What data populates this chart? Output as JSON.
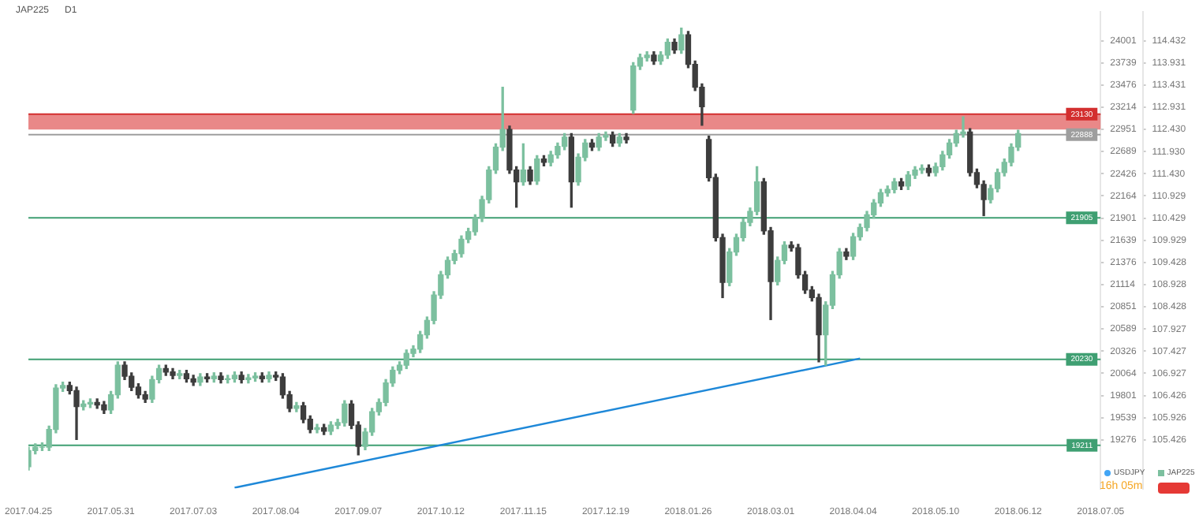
{
  "chart_data": {
    "type": "candlestick",
    "title": "JAP225",
    "annotations": [
      "D1",
      "USDJPY",
      "16h 05m"
    ],
    "categories": [
      "2017.04.25",
      null,
      null,
      null,
      null,
      null,
      null,
      null,
      null,
      null,
      null,
      null,
      "2017.05.31",
      null,
      null,
      null,
      null,
      null,
      null,
      null,
      null,
      null,
      null,
      null,
      "2017.07.03",
      null,
      null,
      null,
      null,
      null,
      null,
      null,
      null,
      null,
      null,
      null,
      "2017.08.04",
      null,
      null,
      null,
      null,
      null,
      null,
      null,
      null,
      null,
      null,
      null,
      "2017.09.07",
      null,
      null,
      null,
      null,
      null,
      null,
      null,
      null,
      null,
      null,
      null,
      "2017.10.12",
      null,
      null,
      null,
      null,
      null,
      null,
      null,
      null,
      null,
      null,
      null,
      "2017.11.15",
      null,
      null,
      null,
      null,
      null,
      null,
      null,
      null,
      null,
      null,
      null,
      "2017.12.19",
      null,
      null,
      null,
      null,
      null,
      null,
      null,
      null,
      null,
      null,
      null,
      "2018.01.26",
      null,
      null,
      null,
      null,
      null,
      null,
      null,
      null,
      null,
      null,
      null,
      "2018.03.01",
      null,
      null,
      null,
      null,
      null,
      null,
      null,
      null,
      null,
      null,
      null,
      "2018.04.04",
      null,
      null,
      null,
      null,
      null,
      null,
      null,
      null,
      null,
      null,
      null,
      "2018.05.10",
      null,
      null,
      null,
      null,
      null,
      null,
      null,
      null,
      null,
      null,
      null,
      "2018.06.12",
      null,
      null,
      null,
      null,
      null,
      null,
      null,
      null,
      null,
      null,
      null,
      "2018.07.05"
    ],
    "series": [
      {
        "name": "JAP225",
        "type": "candlestick",
        "axis": "y2",
        "color": "#7cc09f",
        "ohlc": [
          [
            18960,
            19190,
            18920,
            19150
          ],
          [
            19150,
            19230,
            19110,
            19190
          ],
          [
            19190,
            19240,
            19150,
            19190
          ],
          [
            19190,
            19440,
            19150,
            19400
          ],
          [
            19400,
            19930,
            19360,
            19890
          ],
          [
            19890,
            19960,
            19850,
            19920
          ],
          [
            19920,
            19960,
            19820,
            19860
          ],
          [
            19860,
            19900,
            19280,
            19670
          ],
          [
            19670,
            19740,
            19630,
            19700
          ],
          [
            19700,
            19760,
            19660,
            19720
          ],
          [
            19720,
            19760,
            19650,
            19690
          ],
          [
            19690,
            19730,
            19590,
            19630
          ],
          [
            19630,
            19850,
            19590,
            19810
          ],
          [
            19810,
            20200,
            19770,
            20160
          ],
          [
            20160,
            20200,
            19990,
            20030
          ],
          [
            20030,
            20070,
            19860,
            19900
          ],
          [
            19900,
            19940,
            19770,
            19810
          ],
          [
            19810,
            19850,
            19720,
            19760
          ],
          [
            19760,
            20030,
            19720,
            19990
          ],
          [
            19990,
            20160,
            19950,
            20120
          ],
          [
            20120,
            20160,
            20040,
            20080
          ],
          [
            20080,
            20120,
            20000,
            20040
          ],
          [
            20040,
            20100,
            20000,
            20060
          ],
          [
            20060,
            20100,
            19960,
            20000
          ],
          [
            20000,
            20040,
            19920,
            19960
          ],
          [
            19960,
            20060,
            19920,
            20020
          ],
          [
            20020,
            20060,
            19960,
            20000
          ],
          [
            20000,
            20070,
            19960,
            20030
          ],
          [
            20030,
            20070,
            19950,
            19990
          ],
          [
            19990,
            20040,
            19950,
            20000
          ],
          [
            20000,
            20080,
            19960,
            20040
          ],
          [
            20040,
            20080,
            19950,
            19990
          ],
          [
            19990,
            20050,
            19950,
            20010
          ],
          [
            20010,
            20070,
            19970,
            20030
          ],
          [
            20030,
            20070,
            19960,
            20000
          ],
          [
            20000,
            20080,
            19960,
            20040
          ],
          [
            20040,
            20080,
            19980,
            20020
          ],
          [
            20020,
            20060,
            19770,
            19810
          ],
          [
            19810,
            19850,
            19610,
            19650
          ],
          [
            19650,
            19720,
            19610,
            19680
          ],
          [
            19680,
            19720,
            19480,
            19520
          ],
          [
            19520,
            19560,
            19360,
            19400
          ],
          [
            19400,
            19460,
            19360,
            19420
          ],
          [
            19420,
            19460,
            19340,
            19380
          ],
          [
            19380,
            19490,
            19340,
            19450
          ],
          [
            19450,
            19520,
            19410,
            19480
          ],
          [
            19480,
            19740,
            19440,
            19700
          ],
          [
            19700,
            19740,
            19410,
            19450
          ],
          [
            19450,
            19490,
            19100,
            19200
          ],
          [
            19200,
            19410,
            19160,
            19370
          ],
          [
            19370,
            19650,
            19330,
            19610
          ],
          [
            19610,
            19760,
            19570,
            19720
          ],
          [
            19720,
            19990,
            19680,
            19950
          ],
          [
            19950,
            20140,
            19910,
            20100
          ],
          [
            20100,
            20200,
            20060,
            20160
          ],
          [
            20160,
            20340,
            20120,
            20300
          ],
          [
            20300,
            20390,
            20260,
            20350
          ],
          [
            20350,
            20560,
            20310,
            20520
          ],
          [
            20520,
            20730,
            20480,
            20690
          ],
          [
            20690,
            21030,
            20650,
            20990
          ],
          [
            20990,
            21270,
            20950,
            21230
          ],
          [
            21230,
            21440,
            21190,
            21400
          ],
          [
            21400,
            21520,
            21360,
            21480
          ],
          [
            21480,
            21690,
            21440,
            21650
          ],
          [
            21650,
            21780,
            21610,
            21740
          ],
          [
            21740,
            21940,
            21700,
            21900
          ],
          [
            21900,
            22160,
            21860,
            22120
          ],
          [
            22120,
            22510,
            22080,
            22470
          ],
          [
            22470,
            22780,
            22430,
            22740
          ],
          [
            22740,
            23450,
            22700,
            22950
          ],
          [
            22950,
            22990,
            22430,
            22470
          ],
          [
            22470,
            22510,
            22030,
            22330
          ],
          [
            22330,
            22780,
            22290,
            22470
          ],
          [
            22470,
            22510,
            22300,
            22340
          ],
          [
            22340,
            22640,
            22300,
            22600
          ],
          [
            22600,
            22640,
            22520,
            22560
          ],
          [
            22560,
            22690,
            22520,
            22650
          ],
          [
            22650,
            22790,
            22610,
            22750
          ],
          [
            22750,
            22900,
            22710,
            22860
          ],
          [
            22860,
            22900,
            22030,
            22330
          ],
          [
            22330,
            22660,
            22290,
            22620
          ],
          [
            22620,
            22830,
            22580,
            22790
          ],
          [
            22790,
            22830,
            22700,
            22740
          ],
          [
            22740,
            22900,
            22700,
            22860
          ],
          [
            22860,
            22920,
            22820,
            22880
          ],
          [
            22880,
            22920,
            22750,
            22790
          ],
          [
            22790,
            22900,
            22750,
            22860
          ],
          [
            22860,
            22900,
            22790,
            22830
          ],
          [
            23180,
            23740,
            23140,
            23700
          ],
          [
            23700,
            23840,
            23660,
            23800
          ],
          [
            23800,
            23870,
            23760,
            23830
          ],
          [
            23830,
            23870,
            23720,
            23760
          ],
          [
            23760,
            23870,
            23720,
            23830
          ],
          [
            23830,
            24020,
            23790,
            23980
          ],
          [
            23980,
            24020,
            23850,
            23890
          ],
          [
            23890,
            24150,
            23850,
            24070
          ],
          [
            24070,
            24110,
            23680,
            23720
          ],
          [
            23720,
            23760,
            23410,
            23450
          ],
          [
            23450,
            23490,
            23000,
            23220
          ],
          [
            22830,
            22870,
            22340,
            22380
          ],
          [
            22380,
            22420,
            21630,
            21670
          ],
          [
            21670,
            21710,
            20960,
            21140
          ],
          [
            21140,
            21540,
            21100,
            21500
          ],
          [
            21500,
            21710,
            21460,
            21670
          ],
          [
            21670,
            21890,
            21630,
            21850
          ],
          [
            21850,
            22020,
            21810,
            21980
          ],
          [
            21980,
            22510,
            21940,
            22330
          ],
          [
            22330,
            22370,
            21710,
            21750
          ],
          [
            21750,
            21790,
            20700,
            21150
          ],
          [
            21150,
            21440,
            21110,
            21400
          ],
          [
            21400,
            21620,
            21360,
            21580
          ],
          [
            21580,
            21620,
            21510,
            21550
          ],
          [
            21550,
            21590,
            21190,
            21230
          ],
          [
            21230,
            21270,
            21010,
            21050
          ],
          [
            21050,
            21090,
            20920,
            20960
          ],
          [
            20960,
            21000,
            20200,
            20520
          ],
          [
            20520,
            20910,
            20160,
            20870
          ],
          [
            20870,
            21270,
            20830,
            21230
          ],
          [
            21230,
            21540,
            21190,
            21500
          ],
          [
            21500,
            21540,
            21410,
            21450
          ],
          [
            21450,
            21720,
            21410,
            21680
          ],
          [
            21680,
            21830,
            21640,
            21790
          ],
          [
            21790,
            21980,
            21750,
            21940
          ],
          [
            21940,
            22120,
            21900,
            22080
          ],
          [
            22080,
            22240,
            22040,
            22200
          ],
          [
            22200,
            22280,
            22160,
            22240
          ],
          [
            22240,
            22370,
            22200,
            22330
          ],
          [
            22330,
            22370,
            22240,
            22280
          ],
          [
            22280,
            22450,
            22240,
            22410
          ],
          [
            22410,
            22510,
            22370,
            22470
          ],
          [
            22470,
            22530,
            22430,
            22490
          ],
          [
            22490,
            22530,
            22400,
            22440
          ],
          [
            22440,
            22550,
            22400,
            22510
          ],
          [
            22510,
            22690,
            22470,
            22650
          ],
          [
            22650,
            22830,
            22610,
            22790
          ],
          [
            22790,
            22940,
            22750,
            22900
          ],
          [
            22900,
            23100,
            22860,
            22920
          ],
          [
            22920,
            22960,
            22400,
            22440
          ],
          [
            22440,
            22480,
            22260,
            22300
          ],
          [
            22300,
            22340,
            21930,
            22120
          ],
          [
            22120,
            22290,
            22080,
            22250
          ],
          [
            22250,
            22480,
            22210,
            22440
          ],
          [
            22440,
            22600,
            22400,
            22560
          ],
          [
            22560,
            22780,
            22520,
            22740
          ],
          [
            22740,
            22940,
            22700,
            22900
          ],
          null,
          null,
          null,
          null,
          null,
          null,
          null,
          null,
          null,
          null,
          null,
          null
        ],
        "colors": [
          "#7cc09f",
          "#7cc09f",
          "#7cc09f",
          "#7cc09f",
          "#7cc09f",
          "#7cc09f",
          "#3d3d3d",
          "#3d3d3d",
          "#7cc09f",
          "#7cc09f",
          "#3d3d3d",
          "#3d3d3d",
          "#7cc09f",
          "#7cc09f",
          "#3d3d3d",
          "#3d3d3d",
          "#3d3d3d",
          "#3d3d3d",
          "#7cc09f",
          "#7cc09f",
          "#3d3d3d",
          "#3d3d3d",
          "#7cc09f",
          "#3d3d3d",
          "#3d3d3d",
          "#7cc09f",
          "#3d3d3d",
          "#7cc09f",
          "#3d3d3d",
          "#7cc09f",
          "#7cc09f",
          "#3d3d3d",
          "#7cc09f",
          "#7cc09f",
          "#3d3d3d",
          "#7cc09f",
          "#3d3d3d",
          "#3d3d3d",
          "#3d3d3d",
          "#7cc09f",
          "#3d3d3d",
          "#3d3d3d",
          "#7cc09f",
          "#3d3d3d",
          "#7cc09f",
          "#7cc09f",
          "#7cc09f",
          "#3d3d3d",
          "#3d3d3d",
          "#7cc09f",
          "#7cc09f",
          "#7cc09f",
          "#7cc09f",
          "#7cc09f",
          "#7cc09f",
          "#7cc09f",
          "#7cc09f",
          "#7cc09f",
          "#7cc09f",
          "#7cc09f",
          "#7cc09f",
          "#7cc09f",
          "#7cc09f",
          "#7cc09f",
          "#7cc09f",
          "#7cc09f",
          "#7cc09f",
          "#7cc09f",
          "#7cc09f",
          "#7cc09f",
          "#3d3d3d",
          "#3d3d3d",
          "#7cc09f",
          "#3d3d3d",
          "#7cc09f",
          "#3d3d3d",
          "#7cc09f",
          "#7cc09f",
          "#7cc09f",
          "#3d3d3d",
          "#7cc09f",
          "#7cc09f",
          "#3d3d3d",
          "#7cc09f",
          "#7cc09f",
          "#3d3d3d",
          "#7cc09f",
          "#3d3d3d",
          "#7cc09f",
          "#7cc09f",
          "#7cc09f",
          "#3d3d3d",
          "#7cc09f",
          "#7cc09f",
          "#3d3d3d",
          "#7cc09f",
          "#3d3d3d",
          "#3d3d3d",
          "#3d3d3d",
          "#3d3d3d",
          "#3d3d3d",
          "#3d3d3d",
          "#7cc09f",
          "#7cc09f",
          "#7cc09f",
          "#7cc09f",
          "#7cc09f",
          "#3d3d3d",
          "#3d3d3d",
          "#7cc09f",
          "#7cc09f",
          "#3d3d3d",
          "#3d3d3d",
          "#3d3d3d",
          "#3d3d3d",
          "#3d3d3d",
          "#7cc09f",
          "#7cc09f",
          "#7cc09f",
          "#3d3d3d",
          "#7cc09f",
          "#7cc09f",
          "#7cc09f",
          "#7cc09f",
          "#7cc09f",
          "#7cc09f",
          "#7cc09f",
          "#3d3d3d",
          "#7cc09f",
          "#7cc09f",
          "#7cc09f",
          "#3d3d3d",
          "#7cc09f",
          "#7cc09f",
          "#7cc09f",
          "#7cc09f",
          "#7cc09f",
          "#3d3d3d",
          "#3d3d3d",
          "#3d3d3d",
          "#7cc09f",
          "#7cc09f",
          "#7cc09f",
          "#7cc09f",
          "#7cc09f",
          null,
          null,
          null,
          null,
          null,
          null,
          null,
          null,
          null,
          null,
          null,
          null
        ]
      },
      {
        "type": "line",
        "axis": "y2",
        "color": "#1e88d8",
        "values": [
          null,
          null,
          null,
          null,
          null,
          null,
          null,
          null,
          null,
          null,
          null,
          null,
          null,
          null,
          null,
          null,
          null,
          null,
          null,
          null,
          null,
          null,
          null,
          null,
          null,
          null,
          null,
          null,
          null,
          null,
          18710,
          null,
          null,
          null,
          null,
          null,
          null,
          null,
          null,
          null,
          null,
          null,
          null,
          null,
          null,
          null,
          null,
          null,
          null,
          null,
          null,
          null,
          null,
          null,
          null,
          null,
          null,
          null,
          null,
          null,
          null,
          null,
          null,
          null,
          null,
          null,
          null,
          null,
          null,
          null,
          null,
          null,
          null,
          null,
          null,
          null,
          null,
          null,
          null,
          null,
          null,
          null,
          null,
          null,
          null,
          null,
          null,
          null,
          null,
          null,
          null,
          null,
          null,
          null,
          null,
          null,
          null,
          null,
          null,
          null,
          null,
          null,
          null,
          null,
          null,
          null,
          null,
          null,
          null,
          null,
          null,
          null,
          null,
          null,
          null,
          null,
          null,
          null,
          null,
          null,
          null,
          20240,
          null,
          null,
          null,
          null,
          null,
          null,
          null,
          null,
          null,
          null,
          null,
          null,
          null,
          null,
          null,
          null,
          null,
          null,
          null,
          null,
          null,
          null,
          null,
          null,
          null,
          null,
          null,
          null,
          null,
          null,
          null,
          null,
          null,
          null,
          null
        ]
      }
    ],
    "y2lim": [
      18700,
      24340
    ],
    "y2ticks": [
      19276,
      19539,
      19801,
      20064,
      20326,
      20589,
      20851,
      21114,
      21376,
      21639,
      21901,
      22164,
      22426,
      22689,
      22951,
      23214,
      23476,
      23739,
      24001
    ],
    "ylim": [
      104.328,
      115.078
    ],
    "yticks": [
      105.426,
      105.926,
      106.426,
      106.927,
      107.427,
      107.927,
      108.428,
      108.928,
      109.428,
      109.929,
      110.429,
      110.929,
      {
        "value": 111.43,
        "label": "111.430"
      },
      {
        "value": 111.93,
        "label": "111.930"
      },
      {
        "value": 112.43,
        "label": "112.430"
      },
      112.931,
      113.431,
      113.931,
      114.432
    ],
    "bands": [
      {
        "axis": "y2",
        "from": 22950,
        "to": 23130,
        "color": "#e57373"
      }
    ],
    "ref_lines": [
      {
        "axis": "y2",
        "value": 23130,
        "label": "23130",
        "color": "#d32f2f"
      },
      {
        "axis": "y2",
        "value": 22888,
        "label": "22888",
        "color": "#9e9e9e"
      },
      {
        "axis": "y2",
        "value": 21905,
        "label": "21905",
        "color": "#3f9f72"
      },
      {
        "axis": "y2",
        "value": 20230,
        "label": "20230",
        "color": "#3f9f72"
      },
      {
        "axis": "y2",
        "value": 19211,
        "label": "19211",
        "color": "#3f9f72"
      }
    ],
    "legend": "bottom right",
    "grid": false
  }
}
